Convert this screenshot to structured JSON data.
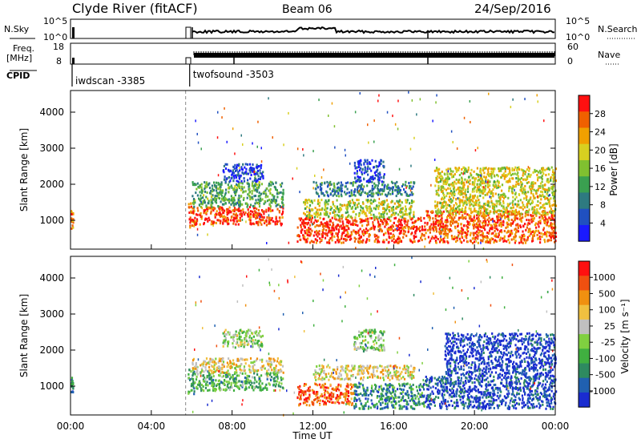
{
  "header": {
    "station": "Clyde River (fitACF)",
    "beam": "Beam 06",
    "date": "24/Sep/2016"
  },
  "noise_panel": {
    "left_label": "N.Sky",
    "left_ticks": [
      "10^5",
      "10^0"
    ],
    "right_label": "N.Search",
    "right_ticks": [
      "10^5",
      "10^0"
    ]
  },
  "freq_panel": {
    "left_label_line1": "Freq.",
    "left_label_line2": "[MHz]",
    "left_ticks": [
      "18",
      "8"
    ],
    "right_label": "Nave",
    "right_ticks": [
      "60",
      "0"
    ]
  },
  "cpid": {
    "label": "CPID",
    "segments": [
      {
        "name": "iwdscan -3385",
        "start_hour": 0.0
      },
      {
        "name": "twofsound -3503",
        "start_hour": 5.9
      }
    ]
  },
  "time_axis": {
    "label": "Time UT",
    "ticks": [
      "00:00",
      "04:00",
      "08:00",
      "12:00",
      "16:00",
      "20:00",
      "00:00"
    ]
  },
  "chart_data": [
    {
      "type": "heatmap",
      "name": "power",
      "ylabel": "Slant Range [km]",
      "yticks": [
        1000,
        2000,
        3000,
        4000
      ],
      "ylim": [
        200,
        4600
      ],
      "xlim": [
        0,
        24
      ],
      "colorbar_label": "Power [dB]",
      "colorbar_ticks": [
        "28",
        "24",
        "20",
        "16",
        "12",
        "8",
        "4"
      ],
      "colors": [
        "#1a1aff",
        "#2050c0",
        "#2e7a80",
        "#3aa050",
        "#80c030",
        "#d8d020",
        "#f0a000",
        "#f06000",
        "#ff1010"
      ],
      "regions": [
        {
          "t0": 0.0,
          "t1": 0.1,
          "r0": 800,
          "r1": 1300,
          "level": 0.75
        },
        {
          "t0": 5.8,
          "t1": 6.1,
          "r0": 800,
          "r1": 1500,
          "level": 0.8
        },
        {
          "t0": 6.0,
          "t1": 10.5,
          "r0": 900,
          "r1": 1400,
          "level": 0.9
        },
        {
          "t0": 6.0,
          "t1": 10.5,
          "r0": 1400,
          "r1": 2100,
          "level": 0.4
        },
        {
          "t0": 7.5,
          "t1": 9.5,
          "r0": 2100,
          "r1": 2600,
          "level": 0.15
        },
        {
          "t0": 11.2,
          "t1": 17.5,
          "r0": 400,
          "r1": 1100,
          "level": 0.9
        },
        {
          "t0": 11.5,
          "t1": 17.0,
          "r0": 1100,
          "r1": 1600,
          "level": 0.55
        },
        {
          "t0": 12.0,
          "t1": 17.0,
          "r0": 1700,
          "r1": 2100,
          "level": 0.3
        },
        {
          "t0": 14.0,
          "t1": 15.5,
          "r0": 2100,
          "r1": 2700,
          "level": 0.1
        },
        {
          "t0": 17.5,
          "t1": 24.0,
          "r0": 400,
          "r1": 1300,
          "level": 0.85
        },
        {
          "t0": 18.0,
          "t1": 24.0,
          "r0": 1200,
          "r1": 2500,
          "level": 0.6
        }
      ]
    },
    {
      "type": "heatmap",
      "name": "velocity",
      "ylabel": "Slant Range [km]",
      "yticks": [
        1000,
        2000,
        3000,
        4000
      ],
      "ylim": [
        200,
        4600
      ],
      "xlim": [
        0,
        24
      ],
      "colorbar_label": "Velocity [m s⁻¹]",
      "colorbar_ticks": [
        "1000",
        "500",
        "100",
        "25",
        "-25",
        "-100",
        "-500",
        "-1000"
      ],
      "colors": [
        "#1a2cd0",
        "#2060b0",
        "#2e8a60",
        "#40b040",
        "#80d040",
        "#c0c0c0",
        "#f0c040",
        "#f09010",
        "#f05010",
        "#ff1010"
      ],
      "regions": [
        {
          "t0": 0.0,
          "t1": 0.1,
          "r0": 800,
          "r1": 1300,
          "level": 0.2
        },
        {
          "t0": 5.8,
          "t1": 6.1,
          "r0": 800,
          "r1": 1500,
          "level": 0.3
        },
        {
          "t0": 6.0,
          "t1": 10.5,
          "r0": 900,
          "r1": 1400,
          "level": 0.35
        },
        {
          "t0": 6.0,
          "t1": 10.5,
          "r0": 1400,
          "r1": 1800,
          "level": 0.6
        },
        {
          "t0": 7.5,
          "t1": 9.5,
          "r0": 2100,
          "r1": 2600,
          "level": 0.5
        },
        {
          "t0": 11.2,
          "t1": 14.0,
          "r0": 500,
          "r1": 1100,
          "level": 0.85
        },
        {
          "t0": 14.0,
          "t1": 17.5,
          "r0": 400,
          "r1": 1100,
          "level": 0.25
        },
        {
          "t0": 12.0,
          "t1": 17.0,
          "r0": 1200,
          "r1": 1600,
          "level": 0.6
        },
        {
          "t0": 14.0,
          "t1": 15.5,
          "r0": 2000,
          "r1": 2600,
          "level": 0.45
        },
        {
          "t0": 17.5,
          "t1": 24.0,
          "r0": 400,
          "r1": 1300,
          "level": 0.1
        },
        {
          "t0": 18.5,
          "t1": 24.0,
          "r0": 1300,
          "r1": 2500,
          "level": 0.05
        }
      ]
    }
  ]
}
